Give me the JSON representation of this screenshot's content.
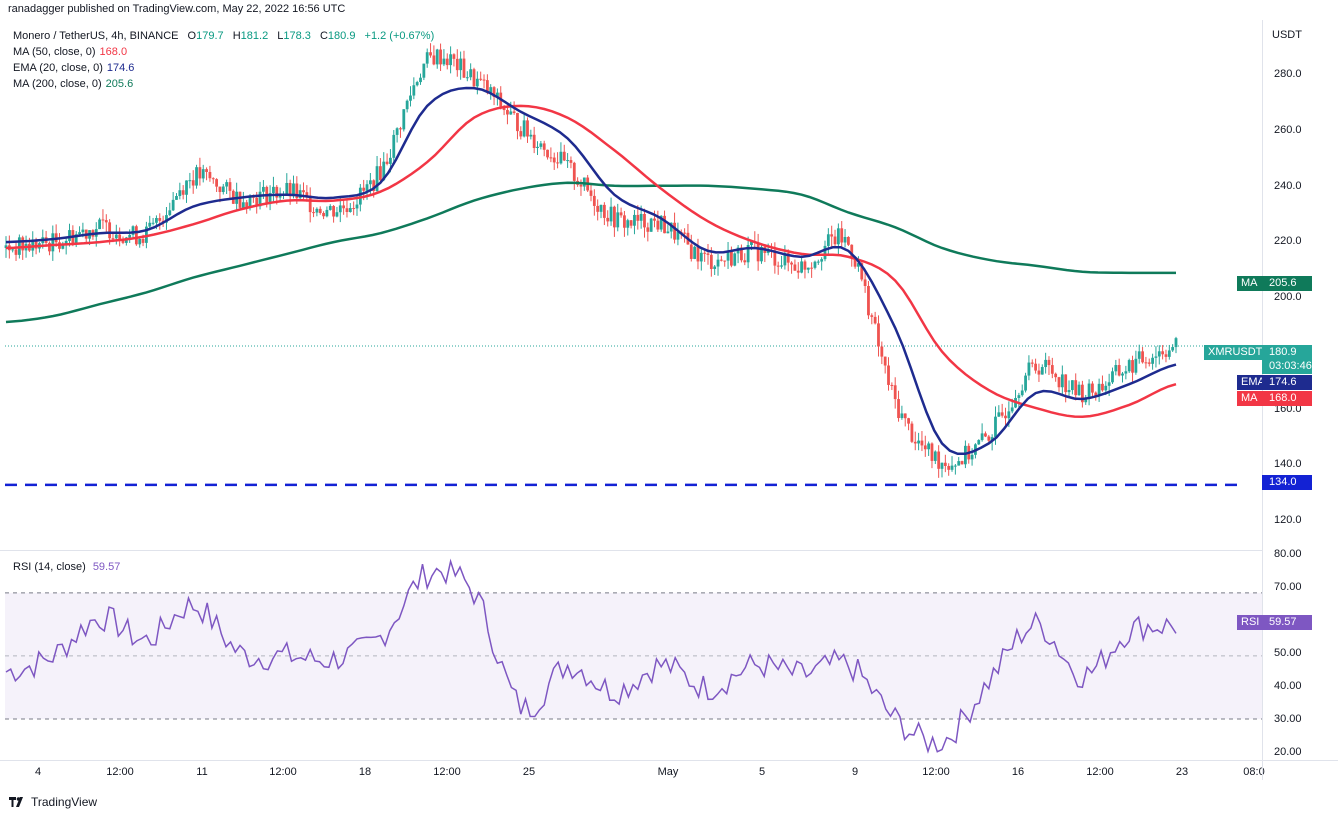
{
  "header": {
    "published": "ranadagger published on TradingView.com, May 22, 2022 16:56 UTC"
  },
  "symbol": {
    "name": "Monero / TetherUS, 4h, BINANCE",
    "open_label": "O",
    "open": "179.7",
    "high_label": "H",
    "high": "181.2",
    "low_label": "L",
    "low": "178.3",
    "close_label": "C",
    "close": "180.9",
    "change": "+1.2 (+0.67%)"
  },
  "indicators": {
    "ma50": {
      "label": "MA (50, close, 0)",
      "value": "168.0",
      "color": "#f23645"
    },
    "ema20": {
      "label": "EMA (20, close, 0)",
      "value": "174.6",
      "color": "#1e2b8f"
    },
    "ma200": {
      "label": "MA (200, close, 0)",
      "value": "205.6",
      "color": "#0f7a5a"
    },
    "rsi": {
      "label": "RSI (14, close)",
      "value": "59.57",
      "color": "#7e57c2"
    }
  },
  "price_axis": {
    "currency": "USDT",
    "ticks": [
      "280.0",
      "260.0",
      "240.0",
      "220.0",
      "200.0",
      "160.0",
      "140.0",
      "120.0"
    ]
  },
  "rsi_axis": {
    "ticks": [
      "80.00",
      "70.00",
      "50.00",
      "40.00",
      "30.00",
      "20.00"
    ]
  },
  "time_axis": {
    "ticks": [
      "4",
      "12:00",
      "11",
      "12:00",
      "18",
      "12:00",
      "25",
      "May",
      "5",
      "9",
      "12:00",
      "16",
      "12:00",
      "23",
      "08:0"
    ]
  },
  "labels": {
    "ma200_tag": "MA",
    "ma200_value": "205.6",
    "symbol_tag": "XMRUSDT",
    "last_price": "180.9",
    "countdown": "03:03:46",
    "ema_tag": "EMA",
    "ema_value": "174.6",
    "ma50_tag": "MA",
    "ma50_value": "168.0",
    "support_value": "134.0",
    "rsi_tag": "RSI",
    "rsi_value": "59.57"
  },
  "footer": {
    "brand": "TradingView"
  },
  "chart_data": {
    "type": "line",
    "price_range": [
      112,
      291
    ],
    "rsi_range": [
      17,
      82
    ],
    "x": [
      "Apr 3",
      "Apr 4",
      "Apr 6",
      "Apr 8",
      "Apr 10",
      "Apr 12",
      "Apr 14",
      "Apr 16",
      "Apr 18",
      "Apr 20",
      "Apr 22",
      "Apr 24",
      "Apr 26",
      "Apr 28",
      "Apr 30",
      "May 2",
      "May 4",
      "May 6",
      "May 8",
      "May 10",
      "May 12",
      "May 14",
      "May 16",
      "May 18",
      "May 20",
      "May 22"
    ],
    "series": [
      {
        "name": "XMRUSDT",
        "color": "#26a69a",
        "values": [
          214,
          216,
          221,
          219,
          238,
          231,
          233,
          227,
          240,
          277,
          271,
          255,
          241,
          224,
          222,
          210,
          213,
          208,
          215,
          162,
          142,
          151,
          174,
          165,
          174,
          180.9
        ]
      },
      {
        "name": "EMA (20, close, 0)",
        "color": "#1e2b8f",
        "values": [
          216,
          217,
          219,
          220,
          228,
          231,
          232,
          231,
          236,
          262,
          268,
          260,
          251,
          232,
          224,
          213,
          214,
          211,
          213,
          187,
          148,
          148,
          165,
          163,
          168,
          174.6
        ]
      },
      {
        "name": "MA (50, close, 0)",
        "color": "#f23645",
        "values": [
          214,
          215,
          216,
          218,
          222,
          227,
          230,
          230,
          233,
          243,
          258,
          262,
          258,
          247,
          234,
          223,
          216,
          212,
          211,
          203,
          179,
          166,
          160,
          157,
          161,
          168.0
        ]
      },
      {
        "name": "MA (200, close, 0)",
        "color": "#0f7a5a",
        "values": [
          189,
          191,
          195,
          199,
          204,
          208,
          212,
          216,
          219,
          224,
          230,
          234,
          236,
          235,
          235,
          235,
          234,
          232,
          226,
          221,
          214,
          210,
          208,
          206,
          205.6,
          205.6
        ]
      },
      {
        "name": "RSI (14, close)",
        "color": "#7e57c2",
        "values": [
          45,
          50,
          62,
          55,
          66,
          51,
          50,
          49,
          56,
          76,
          70,
          34,
          47,
          39,
          47,
          40,
          47,
          44,
          47,
          30,
          23,
          42,
          60,
          44,
          58,
          59.57
        ]
      }
    ],
    "support_level": 134.0,
    "rsi_overbought": 70,
    "rsi_oversold": 30
  }
}
